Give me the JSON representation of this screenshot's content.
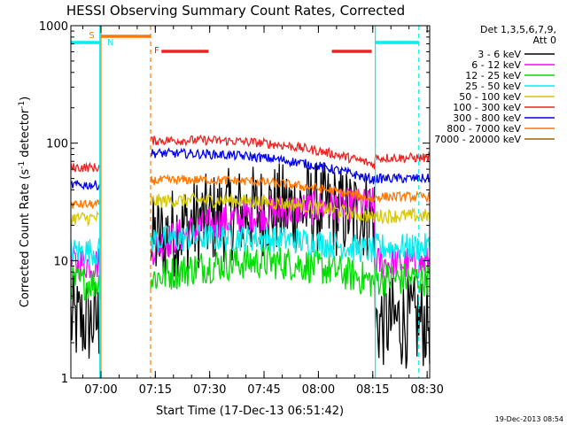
{
  "chart_data": {
    "type": "line",
    "title": "HESSI Observing Summary Count Rates, Corrected",
    "xlabel": "Start Time (17-Dec-13 06:51:42)",
    "ylabel_prefix": "Corrected Count Rate (s",
    "ylabel_sup": "-1",
    "ylabel_mid": " detector",
    "ylabel_sup2": "-1",
    "ylabel_suffix": ")",
    "yscale": "log",
    "ylim": [
      1,
      1000
    ],
    "xlim_minutes": [
      0,
      99
    ],
    "x_ticks": [
      {
        "label": "07:00",
        "minute": 8.3
      },
      {
        "label": "07:15",
        "minute": 23.3
      },
      {
        "label": "07:30",
        "minute": 38.3
      },
      {
        "label": "07:45",
        "minute": 53.3
      },
      {
        "label": "08:00",
        "minute": 68.3
      },
      {
        "label": "08:15",
        "minute": 83.3
      },
      {
        "label": "08:30",
        "minute": 98.3
      }
    ],
    "y_ticks": [
      {
        "label": "1",
        "value": 1
      },
      {
        "label": "10",
        "value": 10
      },
      {
        "label": "100",
        "value": 100
      },
      {
        "label": "1000",
        "value": 1000
      }
    ],
    "legend": {
      "placement": "right",
      "header1": "Det 1,3,5,6,7,9,",
      "header2": "Att 0"
    },
    "series": [
      {
        "name": "3 - 6 keV",
        "color": "#000000",
        "pre": 3.0,
        "noise": 0.4,
        "dayStart": 14,
        "dayEnd": 24,
        "hump": 8,
        "tail": 3.0
      },
      {
        "name": "6 - 12 keV",
        "color": "#ff00ff",
        "pre": 9.5,
        "noise": 0.15,
        "dayStart": 12.5,
        "dayEnd": 30,
        "hump": 4,
        "tail": 9.5
      },
      {
        "name": "12 - 25 keV",
        "color": "#00dd00",
        "pre": 6.5,
        "noise": 0.15,
        "dayStart": 7,
        "dayEnd": 6.5,
        "hump": 3,
        "tail": 7
      },
      {
        "name": "25 - 50 keV",
        "color": "#00eeee",
        "pre": 12,
        "noise": 0.12,
        "dayStart": 15,
        "dayEnd": 12,
        "hump": 2,
        "tail": 13
      },
      {
        "name": "50 - 100 keV",
        "color": "#d8c800",
        "pre": 23,
        "noise": 0.06,
        "dayStart": 32,
        "dayEnd": 23,
        "hump": 4,
        "tail": 24
      },
      {
        "name": "100 - 300 keV",
        "color": "#ee2222",
        "pre": 62,
        "noise": 0.04,
        "dayStart": 105,
        "dayEnd": 65,
        "hump": 15,
        "tail": 75
      },
      {
        "name": "300 - 800 keV",
        "color": "#0000ee",
        "pre": 44,
        "noise": 0.04,
        "dayStart": 82,
        "dayEnd": 48,
        "hump": 10,
        "tail": 50
      },
      {
        "name": "800 - 7000 keV",
        "color": "#ff7700",
        "pre": 30,
        "noise": 0.04,
        "dayStart": 48,
        "dayEnd": 33,
        "hump": 6,
        "tail": 35
      },
      {
        "name": "7000 - 20000 keV",
        "color": "#996600",
        "pre": 0,
        "noise": 0,
        "dayStart": 0,
        "dayEnd": 0,
        "hump": 0,
        "tail": 0
      }
    ],
    "flags": [
      {
        "label": "S",
        "color": "#ff7700",
        "start_minute": 8.3,
        "end_minute": 22
      },
      {
        "label": "N",
        "color": "#00eeee",
        "start_minute": 0,
        "end_minute": 8.3
      },
      {
        "label": "N",
        "color": "#00eeee",
        "start_minute": 84,
        "end_minute": 96
      },
      {
        "label": "F",
        "color": "#ee2222",
        "start_minute": 25,
        "end_minute": 38
      },
      {
        "label": "F",
        "color": "#ee2222",
        "start_minute": 72,
        "end_minute": 83
      }
    ],
    "flag_labels": {
      "s": "S",
      "n": "N",
      "f": "F"
    },
    "vertical_lines": [
      {
        "minute": 8.0,
        "color": "#00eeee",
        "style": "solid"
      },
      {
        "minute": 8.3,
        "color": "#ff7700",
        "style": "solid"
      },
      {
        "minute": 22.0,
        "color": "#ff7700",
        "style": "dashed"
      },
      {
        "minute": 84.0,
        "color": "#00eeee",
        "style": "solid"
      },
      {
        "minute": 96.0,
        "color": "#00eeee",
        "style": "dashed"
      }
    ],
    "timestamp": "19-Dec-2013 08:54"
  }
}
